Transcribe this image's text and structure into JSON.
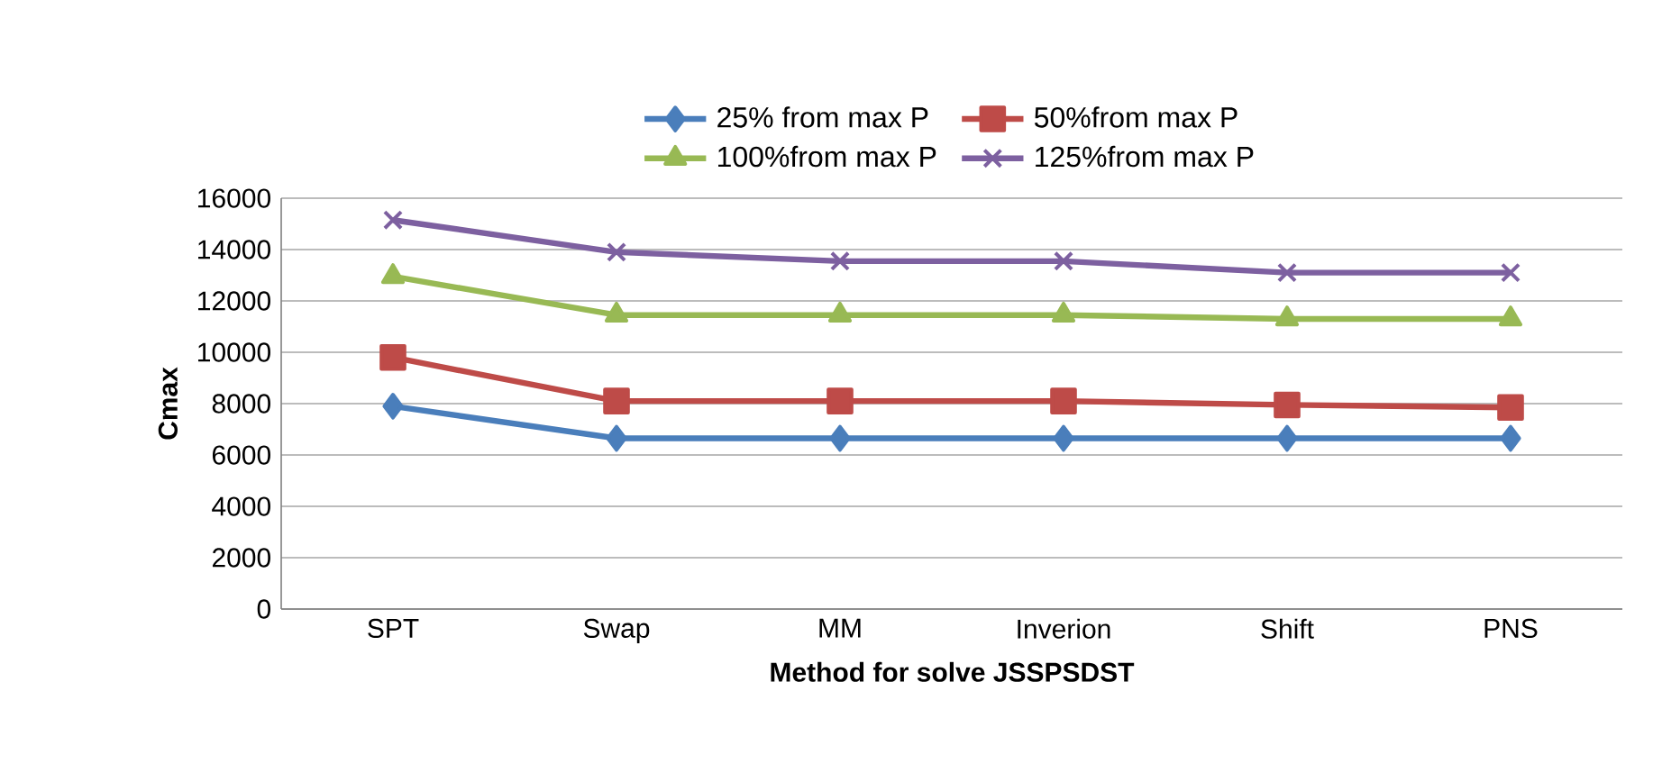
{
  "chart_data": {
    "type": "line",
    "xlabel": "Method for solve JSSPSDST",
    "ylabel": "Cmax",
    "categories": [
      "SPT",
      "Swap",
      "MM",
      "Inverion",
      "Shift",
      "PNS"
    ],
    "series": [
      {
        "name": "25% from max P",
        "color": "#4a7ebb",
        "marker": "diamond",
        "values": [
          7900,
          6650,
          6650,
          6650,
          6650,
          6650
        ]
      },
      {
        "name": "50%from max P",
        "color": "#be4b48",
        "marker": "square",
        "values": [
          9800,
          8100,
          8100,
          8100,
          7950,
          7850
        ]
      },
      {
        "name": "100%from max P",
        "color": "#98b954",
        "marker": "triangle",
        "values": [
          12950,
          11450,
          11450,
          11450,
          11300,
          11300
        ]
      },
      {
        "name": "125%from max P",
        "color": "#7d60a0",
        "marker": "cross",
        "values": [
          15150,
          13900,
          13550,
          13550,
          13100,
          13100
        ]
      }
    ],
    "ylim": [
      0,
      16000
    ],
    "yticks": [
      0,
      2000,
      4000,
      6000,
      8000,
      10000,
      12000,
      14000,
      16000
    ],
    "grid": "y",
    "legend": "top",
    "line_style": "solid"
  }
}
